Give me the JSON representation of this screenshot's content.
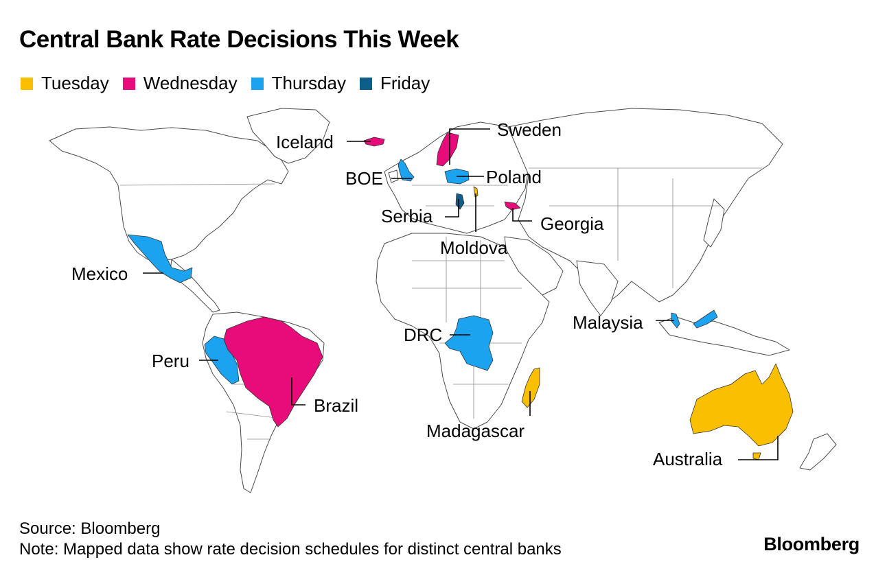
{
  "title": "Central Bank Rate Decisions This Week",
  "colors": {
    "tuesday": "#F9BF00",
    "wednesday": "#E80C7A",
    "thursday": "#1BA3F0",
    "friday": "#0D5F8A"
  },
  "legend": [
    {
      "label": "Tuesday",
      "color": "#F9BF00"
    },
    {
      "label": "Wednesday",
      "color": "#E80C7A"
    },
    {
      "label": "Thursday",
      "color": "#1BA3F0"
    },
    {
      "label": "Friday",
      "color": "#0D5F8A"
    }
  ],
  "countries": {
    "iceland": {
      "label": "Iceland",
      "day": "Wednesday"
    },
    "sweden": {
      "label": "Sweden",
      "day": "Wednesday"
    },
    "boe": {
      "label": "BOE",
      "day": "Thursday"
    },
    "poland": {
      "label": "Poland",
      "day": "Thursday"
    },
    "serbia": {
      "label": "Serbia",
      "day": "Friday"
    },
    "georgia": {
      "label": "Georgia",
      "day": "Wednesday"
    },
    "moldova": {
      "label": "Moldova",
      "day": "Tuesday"
    },
    "mexico": {
      "label": "Mexico",
      "day": "Thursday"
    },
    "peru": {
      "label": "Peru",
      "day": "Thursday"
    },
    "brazil": {
      "label": "Brazil",
      "day": "Wednesday"
    },
    "drc": {
      "label": "DRC",
      "day": "Thursday"
    },
    "madagascar": {
      "label": "Madagascar",
      "day": "Tuesday"
    },
    "malaysia": {
      "label": "Malaysia",
      "day": "Thursday"
    },
    "australia": {
      "label": "Australia",
      "day": "Tuesday"
    }
  },
  "footer": {
    "source": "Source: Bloomberg",
    "note": "Note: Mapped data show rate decision schedules for distinct central banks"
  },
  "brand": "Bloomberg"
}
